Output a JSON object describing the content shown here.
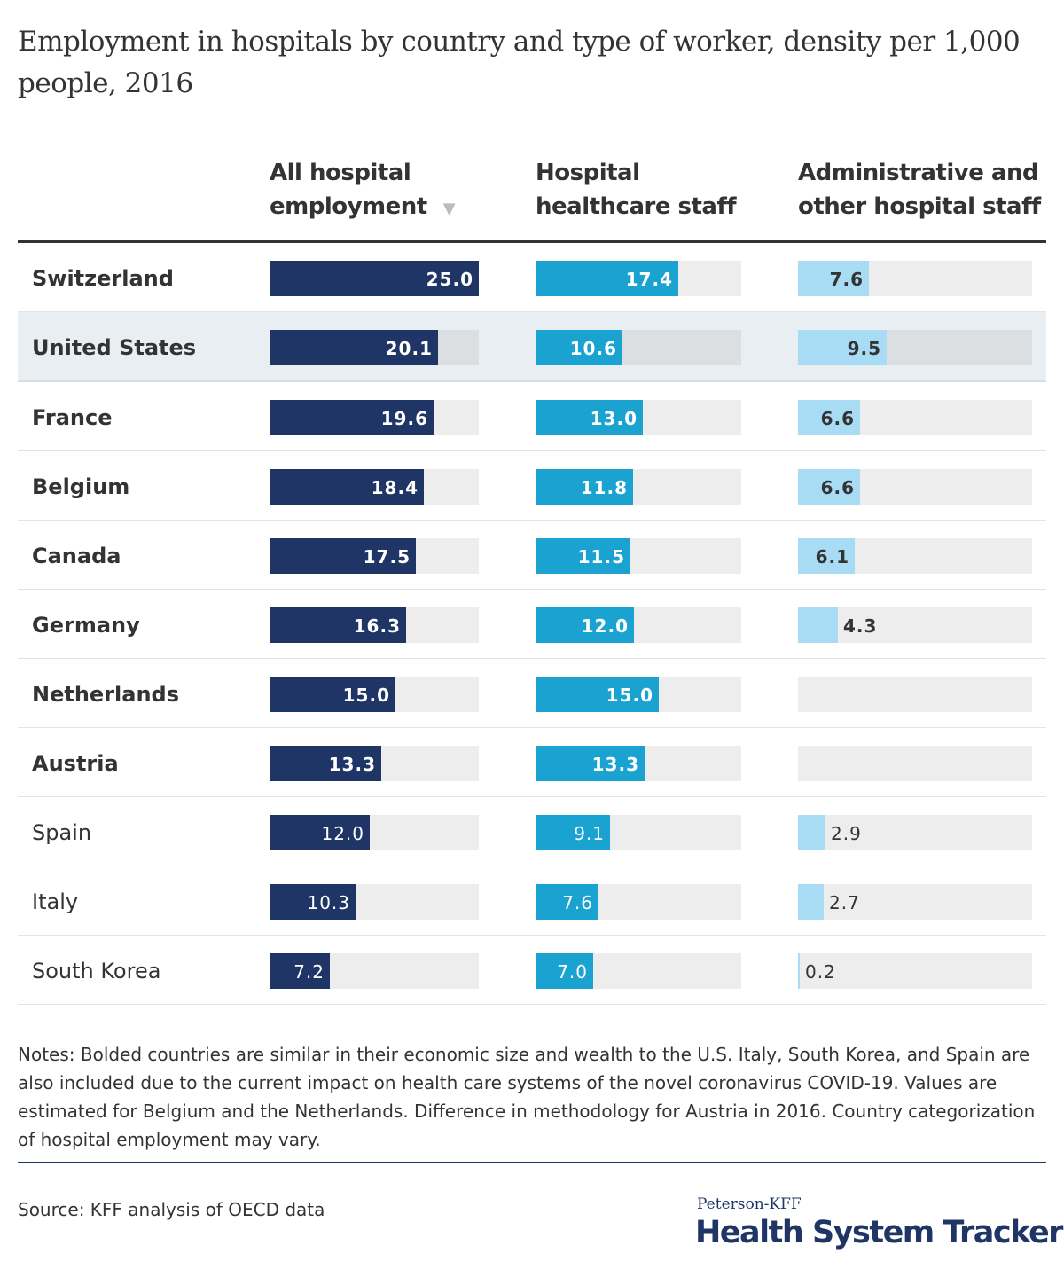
{
  "chart_data": {
    "type": "bar",
    "title": "Employment in hospitals by country and type of worker, density per 1,000 people, 2016",
    "categories": [
      "Switzerland",
      "United States",
      "France",
      "Belgium",
      "Canada",
      "Germany",
      "Netherlands",
      "Austria",
      "Spain",
      "Italy",
      "South Korea"
    ],
    "bold_categories": [
      "Switzerland",
      "United States",
      "France",
      "Belgium",
      "Canada",
      "Germany",
      "Netherlands",
      "Austria"
    ],
    "highlighted_category": "United States",
    "xlim": [
      0,
      25
    ],
    "sort_indicator": "▼",
    "series": [
      {
        "name": "All hospital employment",
        "color": "#1f3566",
        "values": [
          25.0,
          20.1,
          19.6,
          18.4,
          17.5,
          16.3,
          15.0,
          13.3,
          12.0,
          10.3,
          7.2
        ]
      },
      {
        "name": "Hospital healthcare staff",
        "color": "#1aa3d1",
        "values": [
          17.4,
          10.6,
          13.0,
          11.8,
          11.5,
          12.0,
          15.0,
          13.3,
          9.1,
          7.6,
          7.0
        ]
      },
      {
        "name": "Administrative and other hospital staff",
        "color": "#a8dcf4",
        "values": [
          7.6,
          9.5,
          6.6,
          6.6,
          6.1,
          4.3,
          null,
          null,
          2.9,
          2.7,
          0.2
        ]
      }
    ]
  },
  "headers": [
    [
      "All hospital",
      "employment"
    ],
    [
      "Hospital",
      "healthcare staff"
    ],
    [
      "Administrative and",
      "other hospital staff"
    ]
  ],
  "notes": "Notes: Bolded countries are similar in their economic size and wealth to the U.S. Italy, South Korea, and Spain are also included due to the current impact on health care systems of the novel coronavirus COVID-19. Values are estimated for Belgium and the Netherlands. Difference in methodology for Austria in 2016. Country categorization of hospital employment may vary.",
  "source": "Source: KFF analysis of OECD data",
  "logo": {
    "line1": "Peterson-KFF",
    "line2": "Health System Tracker"
  }
}
